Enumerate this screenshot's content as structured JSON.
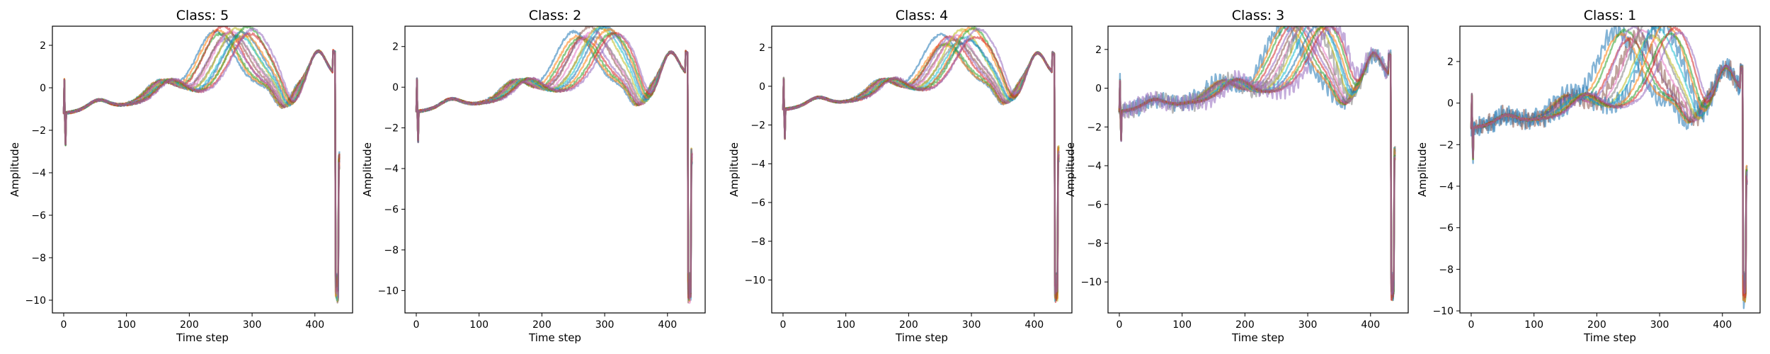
{
  "figure": {
    "xlabel": "Time step",
    "ylabel": "Amplitude"
  },
  "palette": [
    "#1f77b4",
    "#ff7f0e",
    "#2ca02c",
    "#d62728",
    "#9467bd",
    "#8c564b",
    "#e377c2",
    "#7f7f7f",
    "#bcbd22",
    "#17becf"
  ],
  "chart_data": [
    {
      "type": "line",
      "title": "Class: 5",
      "xlabel": "Time step",
      "ylabel": "Amplitude",
      "xlim": [
        -18,
        460
      ],
      "ylim": [
        -10.6,
        2.9
      ],
      "xticks": [
        0,
        100,
        200,
        300,
        400
      ],
      "yticks": [
        -10,
        -8,
        -6,
        -4,
        -2,
        0,
        2
      ],
      "grid": false,
      "n_series": 15,
      "length": 440,
      "peak_x_range": [
        240,
        300
      ],
      "peak_y": 2.2,
      "min_y": -10.1
    },
    {
      "type": "line",
      "title": "Class: 2",
      "xlabel": "Time step",
      "ylabel": "Amplitude",
      "xlim": [
        -18,
        460
      ],
      "ylim": [
        -11.1,
        3.0
      ],
      "xticks": [
        0,
        100,
        200,
        300,
        400
      ],
      "yticks": [
        -10,
        -8,
        -6,
        -4,
        -2,
        0,
        2
      ],
      "grid": false,
      "n_series": 15,
      "length": 440,
      "peak_x_range": [
        250,
        320
      ],
      "peak_y": 2.2,
      "min_y": -10.6
    },
    {
      "type": "line",
      "title": "Class: 4",
      "xlabel": "Time step",
      "ylabel": "Amplitude",
      "xlim": [
        -18,
        460
      ],
      "ylim": [
        -11.7,
        3.1
      ],
      "xticks": [
        0,
        100,
        200,
        300,
        400
      ],
      "yticks": [
        -10,
        -8,
        -6,
        -4,
        -2,
        0,
        2
      ],
      "grid": false,
      "n_series": 15,
      "length": 440,
      "peak_x_range": [
        250,
        310
      ],
      "peak_y": 2.1,
      "min_y": -11.1
    },
    {
      "type": "line",
      "title": "Class: 3",
      "xlabel": "Time step",
      "ylabel": "Amplitude",
      "xlim": [
        -18,
        460
      ],
      "ylim": [
        -11.6,
        3.2
      ],
      "xticks": [
        0,
        100,
        200,
        300,
        400
      ],
      "yticks": [
        -10,
        -8,
        -6,
        -4,
        -2,
        0,
        2
      ],
      "grid": false,
      "n_series": 15,
      "length": 440,
      "peak_x_range": [
        260,
        340
      ],
      "peak_y": 2.6,
      "min_y": -11.0
    },
    {
      "type": "line",
      "title": "Class: 1",
      "xlabel": "Time step",
      "ylabel": "Amplitude",
      "xlim": [
        -18,
        460
      ],
      "ylim": [
        -10.1,
        3.7
      ],
      "xticks": [
        0,
        100,
        200,
        300,
        400
      ],
      "yticks": [
        -10,
        -8,
        -6,
        -4,
        -2,
        0,
        2
      ],
      "grid": false,
      "n_series": 15,
      "length": 440,
      "peak_x_range": [
        230,
        330
      ],
      "peak_y": 3.0,
      "min_y": -9.6
    }
  ]
}
